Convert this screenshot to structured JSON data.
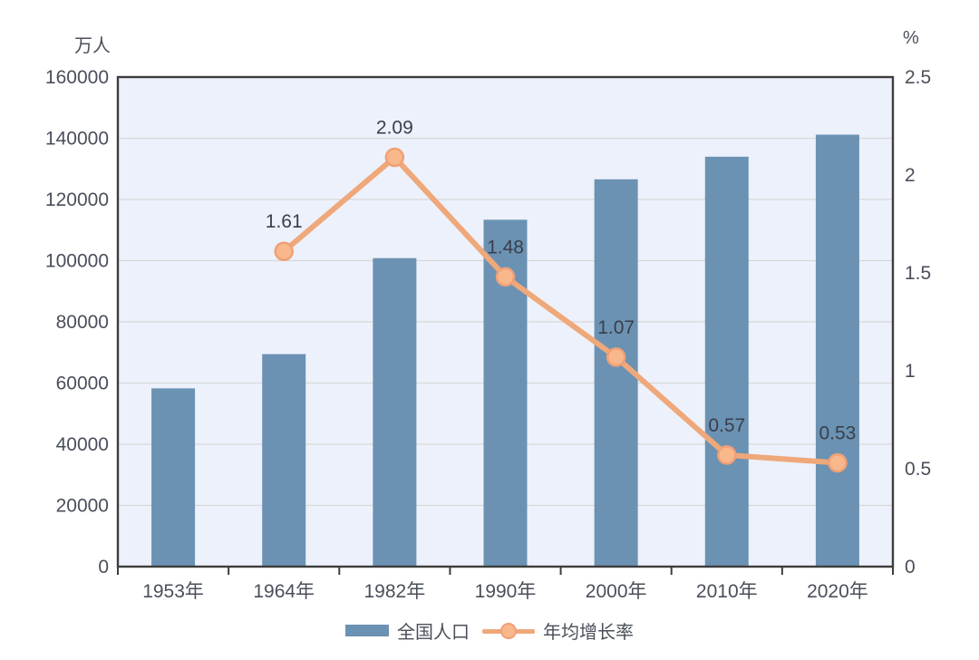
{
  "chart_data": {
    "type": "bar",
    "subtype": "combo-bar-line",
    "title": "",
    "categories": [
      "1953年",
      "1964年",
      "1982年",
      "1990年",
      "2000年",
      "2010年",
      "2020年"
    ],
    "series": [
      {
        "name": "全国人口",
        "type": "bar",
        "axis": "left",
        "values": [
          58260,
          69458,
          100818,
          113368,
          126583,
          133972,
          141178
        ],
        "color": "#6b92b3"
      },
      {
        "name": "年均增长率",
        "type": "line",
        "axis": "right",
        "values": [
          null,
          1.61,
          2.09,
          1.48,
          1.07,
          0.57,
          0.53
        ],
        "point_labels": [
          "",
          "1.61",
          "2.09",
          "1.48",
          "1.07",
          "0.57",
          "0.53"
        ],
        "color": "#efa87a",
        "marker_fill": "#f9b88c",
        "marker_stroke": "#f0a077"
      }
    ],
    "left_axis": {
      "unit": "万人",
      "min": 0,
      "max": 160000,
      "step": 20000,
      "tick_labels": [
        "0",
        "20000",
        "40000",
        "60000",
        "80000",
        "100000",
        "120000",
        "140000",
        "160000"
      ]
    },
    "right_axis": {
      "unit": "%",
      "min": 0,
      "max": 2.5,
      "step": 0.5,
      "tick_labels": [
        "0",
        "0.5",
        "1",
        "1.5",
        "2",
        "2.5"
      ]
    },
    "grid": true,
    "legend_position": "bottom",
    "colors": {
      "plot_background": "#edf1fb",
      "grid_line": "#d8d8d8",
      "plot_border": "#3d3d3d",
      "tick_text": "#4a4f5a",
      "data_label_text": "#3a3f4a"
    }
  }
}
